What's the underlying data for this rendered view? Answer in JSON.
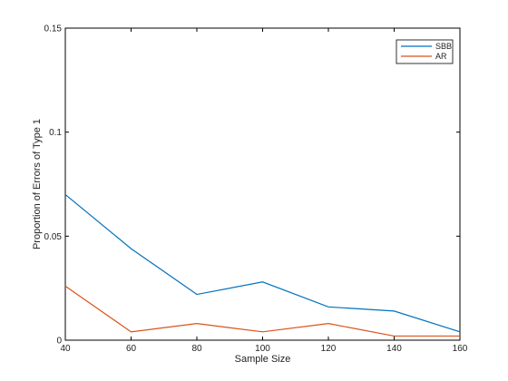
{
  "chart_data": {
    "type": "line",
    "xlabel": "Sample Size",
    "ylabel": "Proportion of Errors of Type 1",
    "xlim": [
      40,
      160
    ],
    "ylim": [
      0,
      0.15
    ],
    "x": [
      40,
      60,
      80,
      100,
      120,
      140,
      160
    ],
    "x_ticks": [
      40,
      60,
      80,
      100,
      120,
      140,
      160
    ],
    "y_ticks": [
      0,
      0.05,
      0.1,
      0.15
    ],
    "y_tick_labels": [
      "0",
      "0.05",
      "0.1",
      "0.15"
    ],
    "grid": false,
    "legend_position": "top-right",
    "series": [
      {
        "name": "SBB",
        "color": "#0072BD",
        "values": [
          0.07,
          0.044,
          0.022,
          0.028,
          0.016,
          0.014,
          0.004
        ]
      },
      {
        "name": "AR",
        "color": "#D95319",
        "values": [
          0.026,
          0.004,
          0.008,
          0.004,
          0.008,
          0.002,
          0.002
        ]
      }
    ]
  }
}
